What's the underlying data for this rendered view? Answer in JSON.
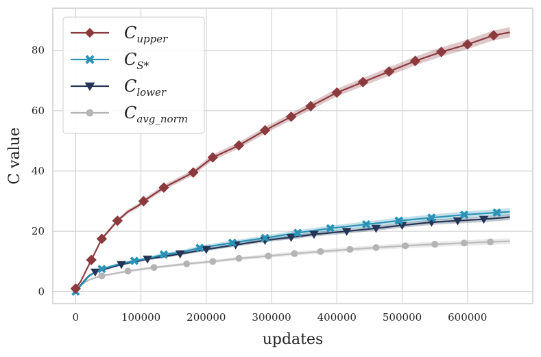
{
  "chart_data": {
    "type": "line",
    "xlabel": "updates",
    "ylabel": "C value",
    "xlim": [
      -35000,
      700000
    ],
    "ylim": [
      -4,
      94
    ],
    "grid": true,
    "legend_position": "top-left",
    "x_ticks": [
      0,
      100000,
      200000,
      300000,
      400000,
      500000,
      600000
    ],
    "x_tick_labels": [
      "0",
      "100000",
      "200000",
      "300000",
      "400000",
      "500000",
      "600000"
    ],
    "y_ticks": [
      0,
      20,
      40,
      60,
      80
    ],
    "y_tick_labels": [
      "0",
      "20",
      "40",
      "60",
      "80"
    ],
    "series": [
      {
        "key": "upper",
        "legend_main": "C",
        "legend_sub": "upper",
        "color": "#8b3a3e",
        "marker": "diamond",
        "band": 1.5,
        "x": [
          0,
          8000,
          16000,
          24000,
          32000,
          40000,
          52000,
          64000,
          80000,
          96000,
          104000,
          135000,
          180000,
          210000,
          250000,
          290000,
          330000,
          360000,
          400000,
          440000,
          480000,
          520000,
          560000,
          600000,
          640000,
          665000
        ],
        "y": [
          1,
          3.5,
          7,
          10.5,
          14,
          17.5,
          20.5,
          23.5,
          26.5,
          28.5,
          30,
          34.5,
          39.5,
          44.5,
          48.5,
          53.5,
          58,
          61.5,
          66,
          69.5,
          73,
          76.5,
          79.5,
          82,
          85,
          86
        ],
        "marker_x": [
          0,
          24000,
          40000,
          64000,
          104000,
          135000,
          180000,
          210000,
          250000,
          290000,
          330000,
          360000,
          400000,
          440000,
          480000,
          520000,
          560000,
          600000,
          640000
        ],
        "marker_y": [
          1,
          10.5,
          17.5,
          23.5,
          30,
          34.5,
          39.5,
          44.5,
          48.5,
          53.5,
          58,
          61.5,
          66,
          69.5,
          73,
          76.5,
          79.5,
          82,
          85
        ]
      },
      {
        "key": "s_star",
        "legend_main": "C",
        "legend_sub": "S*",
        "color": "#2a93b6",
        "marker": "x",
        "band": 1.0,
        "x": [
          0,
          10000,
          20000,
          30000,
          40000,
          70000,
          90000,
          110000,
          135000,
          160000,
          190000,
          240000,
          290000,
          340000,
          390000,
          445000,
          495000,
          545000,
          595000,
          645000,
          665000
        ],
        "y": [
          0,
          2.5,
          5,
          6.5,
          7.5,
          9.3,
          10.2,
          11,
          12.3,
          13,
          14.5,
          16.2,
          17.8,
          19.5,
          21,
          22.3,
          23.5,
          24.5,
          25.5,
          26.2,
          26.5
        ],
        "marker_x": [
          0,
          40000,
          90000,
          135000,
          190000,
          240000,
          290000,
          340000,
          390000,
          445000,
          495000,
          545000,
          595000,
          645000
        ],
        "marker_y": [
          0,
          7.5,
          10.2,
          12.3,
          14.5,
          16.2,
          17.8,
          19.5,
          21,
          22.3,
          23.5,
          24.5,
          25.5,
          26.2
        ]
      },
      {
        "key": "lower",
        "legend_main": "C",
        "legend_sub": "lower",
        "color": "#253556",
        "marker": "triangle-down",
        "band": 0.8,
        "x": [
          0,
          10000,
          20000,
          30000,
          40000,
          70000,
          110000,
          160000,
          200000,
          245000,
          290000,
          330000,
          365000,
          415000,
          460000,
          500000,
          545000,
          585000,
          625000,
          665000
        ],
        "y": [
          0,
          2.8,
          5.2,
          6.5,
          7.2,
          9,
          10.8,
          12.5,
          14,
          15.5,
          17,
          18,
          19,
          20,
          21,
          22,
          23,
          23.5,
          24,
          24.7
        ],
        "marker_x": [
          30000,
          70000,
          110000,
          160000,
          200000,
          245000,
          290000,
          330000,
          365000,
          415000,
          460000,
          500000,
          545000,
          585000,
          625000
        ],
        "marker_y": [
          6.5,
          9,
          10.8,
          12.5,
          14,
          15.5,
          17,
          18,
          19,
          20,
          21,
          22,
          23,
          23.5,
          24
        ]
      },
      {
        "key": "avg_norm",
        "legend_main": "C",
        "legend_sub": "avg_norm",
        "color": "#b4b4b4",
        "marker": "circle",
        "band": 0.8,
        "x": [
          0,
          10000,
          20000,
          30000,
          40000,
          80000,
          120000,
          170000,
          210000,
          250000,
          295000,
          335000,
          375000,
          420000,
          460000,
          505000,
          550000,
          595000,
          635000,
          665000
        ],
        "y": [
          0.5,
          2.5,
          3.8,
          4.6,
          5.2,
          6.8,
          8,
          9.2,
          10,
          11,
          11.8,
          12.6,
          13.3,
          14,
          14.6,
          15.2,
          15.7,
          16.1,
          16.5,
          16.7
        ],
        "marker_x": [
          40000,
          80000,
          120000,
          170000,
          210000,
          250000,
          295000,
          335000,
          375000,
          420000,
          460000,
          505000,
          550000,
          595000,
          635000
        ],
        "marker_y": [
          5.2,
          6.8,
          8,
          9.2,
          10,
          11,
          11.8,
          12.6,
          13.3,
          14,
          14.6,
          15.2,
          15.7,
          16.1,
          16.5
        ]
      }
    ]
  }
}
